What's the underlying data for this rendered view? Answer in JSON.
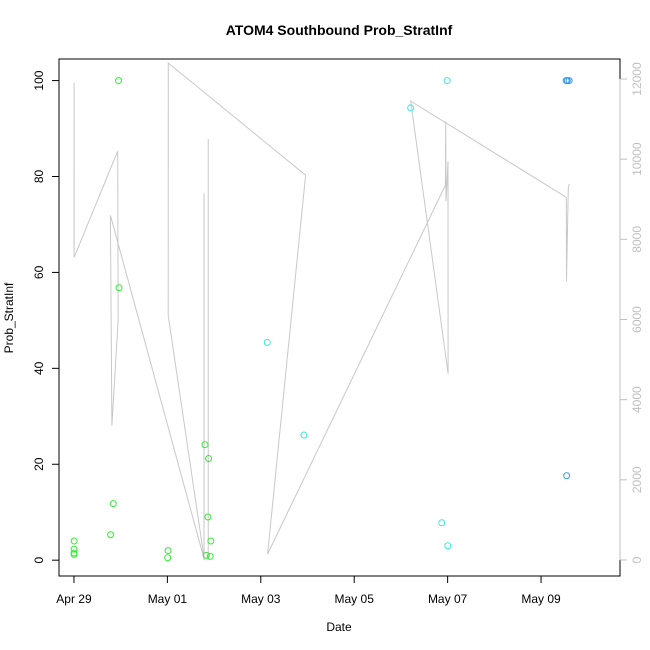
{
  "chart_data": {
    "type": "scatter",
    "title": "ATOM4 Southbound Prob_StratInf",
    "xlabel": "Date",
    "ylabel": "Prob_StratInf",
    "y2label": "",
    "xlim": [
      "2016-04-28T16:19",
      "2016-05-10T16:34"
    ],
    "ylim": [
      -3.3,
      104.5
    ],
    "y2lim": [
      -400,
      12500
    ],
    "grid": false,
    "legend": "none",
    "x_ticks": [
      {
        "date": "2016-04-29",
        "label": "Apr 29"
      },
      {
        "date": "2016-05-01",
        "label": "May 01"
      },
      {
        "date": "2016-05-03",
        "label": "May 03"
      },
      {
        "date": "2016-05-05",
        "label": "May 05"
      },
      {
        "date": "2016-05-07",
        "label": "May 07"
      },
      {
        "date": "2016-05-09",
        "label": "May 09"
      }
    ],
    "y_ticks": [
      "0",
      "20",
      "40",
      "60",
      "80",
      "100"
    ],
    "y2_ticks": [
      "0",
      "2000",
      "4000",
      "6000",
      "8000",
      "10000",
      "12000"
    ],
    "colors": {
      "green": "#33ee33",
      "cyan": "#33eedd",
      "blue": "#3399ee",
      "line": "#c8c8c8",
      "right_axis": "#c0c0c0"
    },
    "series": [
      {
        "color": "green",
        "points": [
          [
            "2016-04-29T00:04",
            1.5
          ],
          [
            "2016-04-29T00:04",
            2.3
          ],
          [
            "2016-04-29T00:04",
            1.2
          ],
          [
            "2016-04-29T00:07",
            4.0
          ],
          [
            "2016-04-29T18:50",
            5.3
          ],
          [
            "2016-04-29T20:10",
            11.8
          ],
          [
            "2016-04-29T22:55",
            100.0
          ],
          [
            "2016-04-29T23:10",
            56.8
          ],
          [
            "2016-05-01T00:10",
            0.5
          ],
          [
            "2016-05-01T00:20",
            2.0
          ],
          [
            "2016-05-01T19:20",
            24.1
          ],
          [
            "2016-05-01T20:00",
            1.0
          ],
          [
            "2016-05-01T20:50",
            9.0
          ],
          [
            "2016-05-01T21:10",
            21.2
          ],
          [
            "2016-05-01T22:00",
            0.8
          ],
          [
            "2016-05-01T22:20",
            4.0
          ]
        ]
      },
      {
        "color": "cyan",
        "points": [
          [
            "2016-05-03T03:20",
            45.4
          ],
          [
            "2016-05-03T22:10",
            26.1
          ],
          [
            "2016-05-06T05:00",
            94.3
          ],
          [
            "2016-05-06T21:00",
            7.8
          ],
          [
            "2016-05-06T23:45",
            100.0
          ],
          [
            "2016-05-07T00:05",
            3.0
          ]
        ]
      },
      {
        "color": "blue",
        "points": [
          [
            "2016-05-09T12:55",
            100.0
          ],
          [
            "2016-05-09T13:10",
            17.6
          ],
          [
            "2016-05-09T13:30",
            100.0
          ],
          [
            "2016-05-09T14:25",
            100.0
          ]
        ]
      }
    ],
    "line_series": {
      "axis": "right",
      "points": [
        [
          "2016-04-29T00:00",
          9700
        ],
        [
          "2016-04-29T00:01",
          7600
        ],
        [
          "2016-04-29T00:05",
          11900
        ],
        [
          "2016-04-29T00:06",
          7550
        ],
        [
          "2016-04-29T22:30",
          10200
        ],
        [
          "2016-04-29T22:40",
          6700
        ],
        [
          "2016-04-29T22:45",
          6000
        ],
        [
          "2016-04-29T19:30",
          3350
        ],
        [
          "2016-04-29T18:45",
          8600
        ],
        [
          "2016-05-01T19:00",
          0
        ],
        [
          "2016-05-01T00:25",
          6100
        ],
        [
          "2016-05-01T00:30",
          12400
        ],
        [
          "2016-05-03T23:00",
          9600
        ],
        [
          "2016-05-03T03:30",
          150
        ],
        [
          "2016-05-06T22:50",
          9350
        ],
        [
          "2016-05-06T23:00",
          10950
        ],
        [
          "2016-05-06T23:10",
          8950
        ],
        [
          "2016-05-07T00:10",
          9950
        ],
        [
          "2016-05-07T00:15",
          4650
        ],
        [
          "2016-05-06T05:00",
          11450
        ],
        [
          "2016-05-09T13:00",
          9050
        ],
        [
          "2016-05-09T13:05",
          6950
        ],
        [
          "2016-05-09T14:00",
          9300
        ],
        [
          "2016-05-09T14:30",
          9380
        ]
      ]
    },
    "spikes": [
      {
        "date": "2016-05-01T18:50",
        "from": 0,
        "to": 9150
      },
      {
        "date": "2016-05-01T21:00",
        "from": 0,
        "to": 10500
      }
    ]
  }
}
